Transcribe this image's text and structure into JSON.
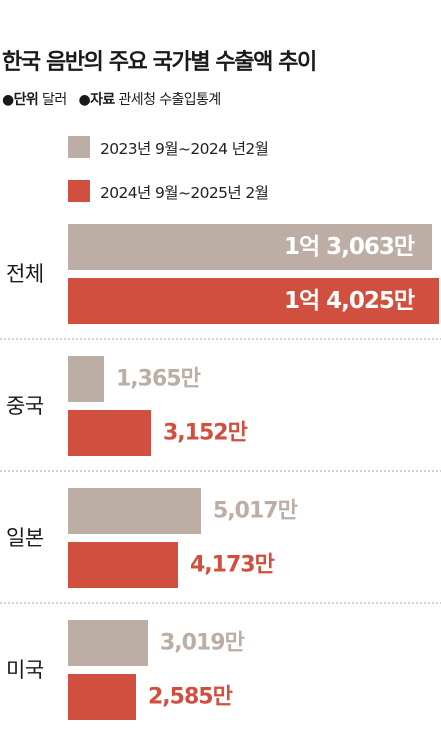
{
  "title": "한국 음반의 주요 국가별 수출액 추이",
  "meta": {
    "unit_label": "단위",
    "unit_value": "달러",
    "source_label": "자료",
    "source_value": "관세청 수출입통계"
  },
  "colors": {
    "series_prev": "#bcaea5",
    "series_curr": "#d14f3f",
    "divider": "#b8b8b8"
  },
  "chart_data": {
    "type": "bar",
    "orientation": "horizontal",
    "unit": "달러",
    "categories": [
      "전체",
      "중국",
      "일본",
      "미국"
    ],
    "series": [
      {
        "name": "2023년 9월~2024 년2월",
        "values": [
          130630000,
          13650000,
          50170000,
          30190000
        ],
        "labels": [
          "1억 3,063만",
          "1,365만",
          "5,017만",
          "3,019만"
        ]
      },
      {
        "name": "2024년 9월~2025년 2월",
        "values": [
          140250000,
          31520000,
          41730000,
          25850000
        ],
        "labels": [
          "1억 4,025만",
          "3,152만",
          "4,173만",
          "2,585만"
        ]
      }
    ]
  }
}
